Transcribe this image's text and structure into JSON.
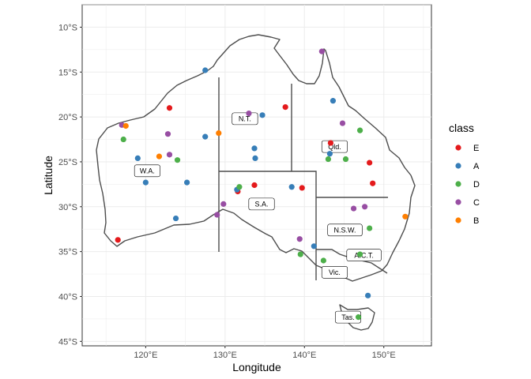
{
  "chart_data": {
    "type": "scatter",
    "title": "",
    "xlabel": "Longitude",
    "ylabel": "Latitude",
    "xlim": [
      112,
      156
    ],
    "ylim": [
      -45.5,
      -7.5
    ],
    "grid": true,
    "x_ticks": [
      {
        "value": 120,
        "label": "120°E"
      },
      {
        "value": 130,
        "label": "130°E"
      },
      {
        "value": 140,
        "label": "140°E"
      },
      {
        "value": 150,
        "label": "150°E"
      }
    ],
    "y_ticks": [
      {
        "value": -10,
        "label": "10°S"
      },
      {
        "value": -15,
        "label": "15°S"
      },
      {
        "value": -20,
        "label": "20°S"
      },
      {
        "value": -25,
        "label": "25°S"
      },
      {
        "value": -30,
        "label": "30°S"
      },
      {
        "value": -35,
        "label": "35°S"
      },
      {
        "value": -40,
        "label": "40°S"
      },
      {
        "value": -45,
        "label": "45°S"
      }
    ],
    "legend": {
      "title": "class",
      "placement": "right",
      "entries": [
        {
          "label": "E",
          "color": "#E41A1C"
        },
        {
          "label": "A",
          "color": "#377EB8"
        },
        {
          "label": "D",
          "color": "#4DAF4A"
        },
        {
          "label": "C",
          "color": "#984EA3"
        },
        {
          "label": "B",
          "color": "#FF7F00"
        }
      ]
    },
    "region_labels": [
      {
        "label": "W.A.",
        "lon": 120.2,
        "lat": -26.0
      },
      {
        "label": "N.T.",
        "lon": 132.5,
        "lat": -20.2
      },
      {
        "label": "S.A.",
        "lon": 134.6,
        "lat": -29.7
      },
      {
        "label": "Qld.",
        "lon": 143.8,
        "lat": -23.3
      },
      {
        "label": "N.S.W.",
        "lon": 145.1,
        "lat": -32.6
      },
      {
        "label": "A.C.T.",
        "lon": 147.5,
        "lat": -35.4
      },
      {
        "label": "Vic.",
        "lon": 143.8,
        "lat": -37.3
      },
      {
        "label": "Tas.",
        "lon": 145.5,
        "lat": -42.3
      }
    ],
    "points": [
      {
        "lon": 123,
        "lat": -19.0,
        "class": "E"
      },
      {
        "lon": 116.5,
        "lat": -33.7,
        "class": "E"
      },
      {
        "lon": 137.6,
        "lat": -18.9,
        "class": "E"
      },
      {
        "lon": 133.7,
        "lat": -27.6,
        "class": "E"
      },
      {
        "lon": 139.7,
        "lat": -27.9,
        "class": "E"
      },
      {
        "lon": 131.6,
        "lat": -28.3,
        "class": "E"
      },
      {
        "lon": 143.3,
        "lat": -22.9,
        "class": "E"
      },
      {
        "lon": 148.2,
        "lat": -25.1,
        "class": "E"
      },
      {
        "lon": 148.6,
        "lat": -27.4,
        "class": "E"
      },
      {
        "lon": 127.5,
        "lat": -14.8,
        "class": "A"
      },
      {
        "lon": 119,
        "lat": -24.6,
        "class": "A"
      },
      {
        "lon": 120,
        "lat": -27.3,
        "class": "A"
      },
      {
        "lon": 127.5,
        "lat": -22.2,
        "class": "A"
      },
      {
        "lon": 125.2,
        "lat": -27.3,
        "class": "A"
      },
      {
        "lon": 123.8,
        "lat": -31.3,
        "class": "A"
      },
      {
        "lon": 134.7,
        "lat": -19.8,
        "class": "A"
      },
      {
        "lon": 133.7,
        "lat": -23.5,
        "class": "A"
      },
      {
        "lon": 133.8,
        "lat": -24.6,
        "class": "A"
      },
      {
        "lon": 131.5,
        "lat": -28.1,
        "class": "A"
      },
      {
        "lon": 138.4,
        "lat": -27.8,
        "class": "A"
      },
      {
        "lon": 143.6,
        "lat": -18.2,
        "class": "A"
      },
      {
        "lon": 143.2,
        "lat": -24.1,
        "class": "A"
      },
      {
        "lon": 141.2,
        "lat": -34.4,
        "class": "A"
      },
      {
        "lon": 148,
        "lat": -39.9,
        "class": "A"
      },
      {
        "lon": 117.2,
        "lat": -22.5,
        "class": "D"
      },
      {
        "lon": 124,
        "lat": -24.8,
        "class": "D"
      },
      {
        "lon": 131.8,
        "lat": -27.8,
        "class": "D"
      },
      {
        "lon": 147,
        "lat": -21.5,
        "class": "D"
      },
      {
        "lon": 143,
        "lat": -24.7,
        "class": "D"
      },
      {
        "lon": 145.2,
        "lat": -24.7,
        "class": "D"
      },
      {
        "lon": 148.2,
        "lat": -32.4,
        "class": "D"
      },
      {
        "lon": 139.5,
        "lat": -35.3,
        "class": "D"
      },
      {
        "lon": 147,
        "lat": -35.3,
        "class": "D"
      },
      {
        "lon": 142.4,
        "lat": -36.0,
        "class": "D"
      },
      {
        "lon": 146.8,
        "lat": -42.3,
        "class": "D"
      },
      {
        "lon": 117,
        "lat": -20.9,
        "class": "C"
      },
      {
        "lon": 122.8,
        "lat": -21.9,
        "class": "C"
      },
      {
        "lon": 123,
        "lat": -24.2,
        "class": "C"
      },
      {
        "lon": 133,
        "lat": -19.6,
        "class": "C"
      },
      {
        "lon": 129.8,
        "lat": -29.7,
        "class": "C"
      },
      {
        "lon": 129,
        "lat": -30.9,
        "class": "C"
      },
      {
        "lon": 142.2,
        "lat": -12.7,
        "class": "C"
      },
      {
        "lon": 144.8,
        "lat": -20.7,
        "class": "C"
      },
      {
        "lon": 146.2,
        "lat": -30.2,
        "class": "C"
      },
      {
        "lon": 147.6,
        "lat": -30.0,
        "class": "C"
      },
      {
        "lon": 139.4,
        "lat": -33.6,
        "class": "C"
      },
      {
        "lon": 117.5,
        "lat": -21.0,
        "class": "B"
      },
      {
        "lon": 121.7,
        "lat": -24.4,
        "class": "B"
      },
      {
        "lon": 129.2,
        "lat": -21.8,
        "class": "B"
      },
      {
        "lon": 152.7,
        "lat": -31.1,
        "class": "B"
      }
    ]
  }
}
